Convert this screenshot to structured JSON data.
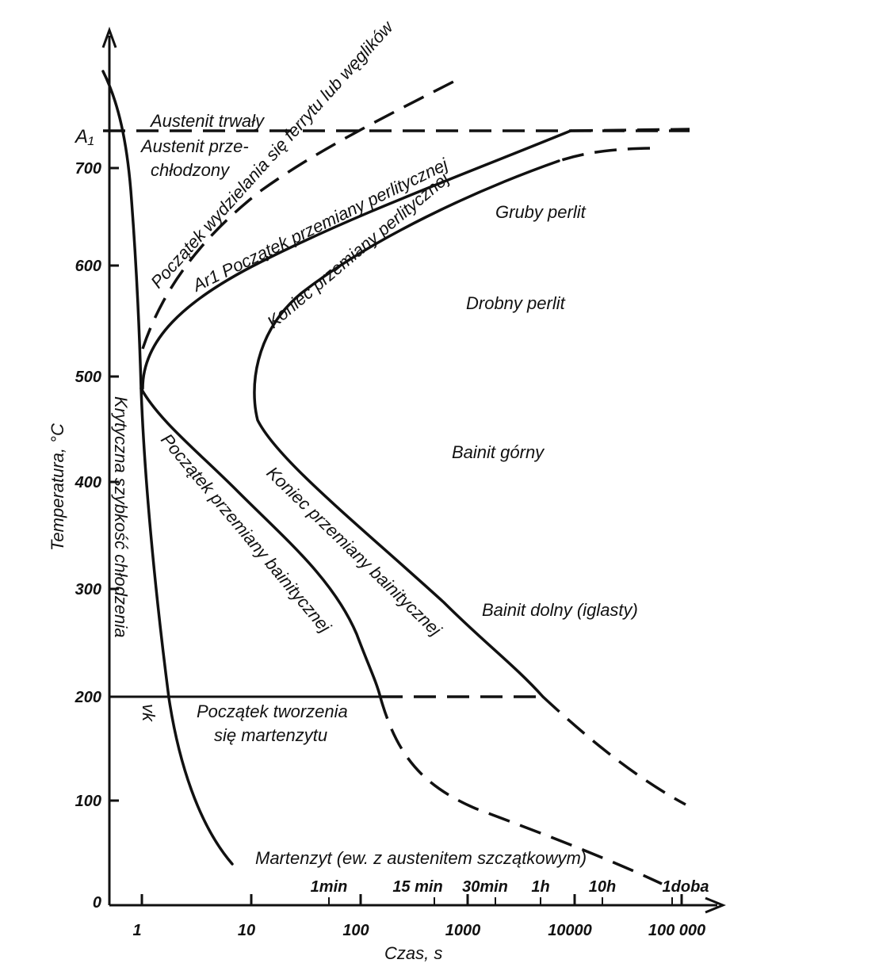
{
  "axes": {
    "y_label": "Temperatura, °C",
    "x_label": "Czas, s",
    "a1_label": "A₁",
    "y_ticks": [
      "700",
      "600",
      "500",
      "400",
      "300",
      "200",
      "100",
      "0"
    ],
    "x_ticks": [
      "1",
      "10",
      "100",
      "1000",
      "10000",
      "100 000"
    ],
    "time_ticks": [
      "1min",
      "15 min",
      "30min",
      "1h",
      "10h",
      "1doba"
    ]
  },
  "labels": {
    "austenit_trwaly": "Austenit trwały",
    "austenit_przechlodzony_1": "Austenit prze-",
    "austenit_przechlodzony_2": "chłodzony",
    "wydzielanie": "Początek wydzielania się ferrytu lub węglików",
    "poczatek_perlit": "Ar1 Początek przemiany perlitycznej",
    "koniec_perlit": "Koniec przemiany perlitycznej",
    "gruby_perlit": "Gruby perlit",
    "drobny_perlit": "Drobny perlit",
    "bainit_gorny": "Bainit górny",
    "bainit_dolny": "Bainit dolny (iglasty)",
    "krytyczna": "Krytyczna szybkość chłodzenia",
    "vk": "vk",
    "poczatek_bainit": "Początek przemiany bainitycznej",
    "koniec_bainit": "Koniec przemiany bainitycznej",
    "martenzyt_start_1": "Początek tworzenia",
    "martenzyt_start_2": "się martenzytu",
    "martenzyt": "Martenzyt (ew. z austenitem szczątkowym)"
  }
}
